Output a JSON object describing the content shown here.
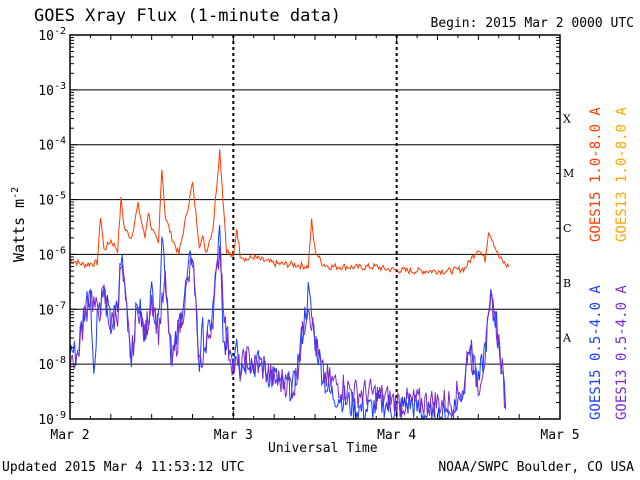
{
  "header": {
    "title": "GOES Xray Flux (1-minute data)",
    "begin": "Begin:  2015 Mar 2 0000 UTC"
  },
  "footer": {
    "updated": "Updated 2015 Mar  4 11:53:12 UTC",
    "credit": "NOAA/SWPC Boulder, CO USA"
  },
  "chart_data": {
    "type": "line",
    "title": "GOES Xray Flux (1-minute data)",
    "xlabel": "Universal Time",
    "ylabel": "Watts m^-2",
    "yscale": "log",
    "ylim": [
      1e-09,
      0.01
    ],
    "xlim_hours": [
      0,
      72
    ],
    "x_tick_labels": [
      "Mar 2",
      "Mar 3",
      "Mar 4",
      "Mar 5"
    ],
    "y_tick_labels": [
      "10^-2",
      "10^-3",
      "10^-4",
      "10^-5",
      "10^-6",
      "10^-7",
      "10^-8",
      "10^-9"
    ],
    "flare_classes": [
      "X",
      "M",
      "C",
      "B",
      "A"
    ],
    "grid": true,
    "legend_position": "right-vertical",
    "series": [
      {
        "name": "GOES15 1.0-8.0 A",
        "color": "#ff3a00",
        "x": [
          0,
          2,
          4,
          4.5,
          5,
          6,
          7,
          7.5,
          8,
          9,
          10,
          11,
          11.5,
          12,
          13,
          13.5,
          14,
          15,
          16,
          18,
          19,
          19.5,
          20,
          21,
          22,
          23,
          24,
          24.5,
          25,
          26,
          27,
          28,
          30,
          33,
          35,
          35.5,
          36,
          37,
          38,
          40,
          42,
          45,
          46,
          48,
          50,
          52,
          54,
          55,
          56,
          58,
          60,
          61,
          61.5,
          62,
          63,
          64,
          64.5
        ],
        "y": [
          8e-07,
          6.5e-07,
          7e-07,
          5e-06,
          1.2e-06,
          1.8e-06,
          1.2e-06,
          1e-05,
          3e-06,
          2e-06,
          8e-06,
          2e-06,
          6e-06,
          3e-06,
          1.5e-06,
          4e-05,
          5e-06,
          2e-06,
          1e-06,
          2e-05,
          1.5e-06,
          2e-06,
          1.1e-06,
          3e-06,
          8e-05,
          1.2e-06,
          8.5e-07,
          3e-06,
          1e-06,
          8e-07,
          9e-07,
          8e-07,
          6.8e-07,
          6.5e-07,
          6e-07,
          4e-06,
          1.2e-06,
          7e-07,
          6e-07,
          6e-07,
          5.8e-07,
          6e-07,
          5.5e-07,
          5.2e-07,
          5e-07,
          5e-07,
          5e-07,
          5e-07,
          5e-07,
          5.5e-07,
          1.3e-06,
          8e-07,
          2.7e-06,
          2e-06,
          9e-07,
          6.5e-07,
          6e-07
        ]
      },
      {
        "name": "GOES13 1.0-8.0 A",
        "color": "#ffa500",
        "x": [],
        "y": []
      },
      {
        "name": "GOES15 0.5-4.0 A",
        "color": "#1a3cff",
        "x": [
          0,
          1,
          2,
          3,
          3.5,
          4,
          5,
          6,
          7,
          7.5,
          8,
          9,
          10,
          11,
          12,
          13,
          13.5,
          14,
          15,
          16,
          18,
          19,
          19.5,
          20,
          21,
          22,
          22.5,
          23,
          24,
          24.5,
          25,
          26,
          27,
          28,
          29,
          30,
          31,
          33,
          35,
          36,
          37,
          38,
          40,
          42,
          44,
          46,
          48,
          50,
          52,
          54,
          56,
          58,
          58.5,
          60,
          61,
          62,
          63,
          64
        ],
        "y": [
          2e-08,
          1.5e-08,
          8e-08,
          3e-07,
          5e-09,
          1e-07,
          2e-07,
          5e-08,
          1e-07,
          1e-06,
          3e-07,
          1.5e-08,
          1.5e-07,
          3e-08,
          2e-07,
          5e-08,
          3e-06,
          4e-07,
          1e-08,
          5e-08,
          1.2e-06,
          1e-08,
          4e-08,
          2e-08,
          1e-07,
          2.5e-06,
          2e-08,
          3e-08,
          1.2e-08,
          4e-08,
          8e-09,
          1.5e-08,
          1e-08,
          1e-08,
          7e-09,
          6e-09,
          4e-09,
          4e-09,
          2e-07,
          3e-08,
          8e-09,
          3e-09,
          2.5e-09,
          1.5e-09,
          1.5e-09,
          2e-09,
          1.4e-09,
          2e-09,
          1.2e-09,
          1.1e-09,
          1.2e-09,
          4e-09,
          3e-08,
          4e-09,
          2e-08,
          2e-07,
          3e-08,
          1.5e-09
        ]
      },
      {
        "name": "GOES13 0.5-4.0 A",
        "color": "#7a2bd0",
        "x": [
          0,
          1,
          2,
          3,
          4,
          5,
          6,
          7,
          7.5,
          8,
          9,
          10,
          11,
          12,
          13,
          14,
          15,
          16,
          18,
          19,
          20,
          21,
          22,
          23,
          24,
          25,
          26,
          27,
          28,
          29,
          30,
          31,
          33,
          35,
          36,
          37,
          38,
          40,
          42,
          44,
          46,
          48,
          50,
          52,
          54,
          56,
          58,
          58.5,
          60,
          61,
          62,
          63,
          64
        ],
        "y": [
          1.5e-08,
          1.2e-08,
          6e-08,
          2e-07,
          8e-08,
          1.8e-07,
          5e-08,
          9e-08,
          6e-07,
          2e-07,
          1.2e-08,
          1.3e-07,
          3e-08,
          1.8e-07,
          4e-08,
          3e-07,
          1e-08,
          4e-08,
          8e-07,
          1e-08,
          2e-08,
          8e-08,
          1.5e-06,
          2.5e-08,
          1e-08,
          8e-09,
          1.3e-08,
          9e-09,
          1e-08,
          7e-09,
          5e-09,
          5e-09,
          4e-09,
          1.5e-07,
          2.5e-08,
          7e-09,
          5e-09,
          4e-09,
          3e-09,
          3e-09,
          2.5e-09,
          2e-09,
          2e-09,
          2e-09,
          2e-09,
          2e-09,
          4e-09,
          2.5e-08,
          4e-09,
          1.5e-08,
          1.5e-07,
          2.5e-08,
          2e-09
        ]
      }
    ]
  }
}
